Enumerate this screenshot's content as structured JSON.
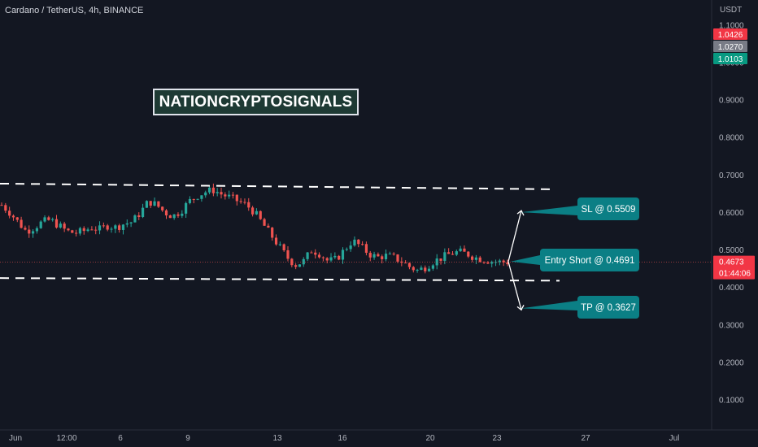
{
  "header": {
    "symbol": "Cardano / TetherUS, 4h, BINANCE"
  },
  "watermark": {
    "text": "NATIONCRYPTOSIGNALS"
  },
  "colors": {
    "background": "#131722",
    "up_candle": "#26a69a",
    "down_candle": "#ef5350",
    "callout": "#0b7f85",
    "dashed_line": "#ffffff"
  },
  "chart_data": {
    "type": "candlestick",
    "y_unit": "USDT",
    "ylim": [
      0.05,
      1.1
    ],
    "y_ticks": [
      "1.1000",
      "1.0000",
      "0.9000",
      "0.8000",
      "0.7000",
      "0.6000",
      "0.5000",
      "0.4000",
      "0.3000",
      "0.2000",
      "0.1000"
    ],
    "x_ticks": [
      "Jun",
      "12:00",
      "6",
      "9",
      "13",
      "16",
      "20",
      "23",
      "27",
      "Jul"
    ],
    "price_badges": [
      {
        "label": "1.0426",
        "value": 1.0426,
        "color": "#f23645"
      },
      {
        "label": "1.0270",
        "value": 1.027,
        "color": "#787b86"
      },
      {
        "label": "1.0103",
        "value": 1.0103,
        "color": "#089981"
      }
    ],
    "last_price": {
      "label": "0.4673",
      "countdown": "01:44:06",
      "value": 0.4673,
      "color": "#f23645"
    },
    "levels": {
      "resistance_line": {
        "start": 0.677,
        "end": 0.662
      },
      "support_line": {
        "start": 0.425,
        "end": 0.418
      },
      "current_guide": 0.4673
    },
    "callouts": [
      {
        "label": "SL @ 0.5509",
        "value": 0.5509
      },
      {
        "label": "Entry Short @ 0.4691",
        "value": 0.4691
      },
      {
        "label": "TP @ 0.3627",
        "value": 0.3627
      }
    ],
    "price_path": [
      0.62,
      0.6,
      0.575,
      0.55,
      0.56,
      0.575,
      0.58,
      0.565,
      0.55,
      0.545,
      0.55,
      0.56,
      0.555,
      0.565,
      0.56,
      0.57,
      0.575,
      0.6,
      0.63,
      0.62,
      0.6,
      0.59,
      0.605,
      0.63,
      0.645,
      0.655,
      0.66,
      0.648,
      0.64,
      0.63,
      0.62,
      0.6,
      0.57,
      0.54,
      0.51,
      0.48,
      0.46,
      0.47,
      0.5,
      0.49,
      0.47,
      0.475,
      0.5,
      0.525,
      0.51,
      0.49,
      0.48,
      0.485,
      0.48,
      0.47,
      0.455,
      0.445,
      0.455,
      0.47,
      0.48,
      0.49,
      0.495,
      0.49,
      0.48,
      0.475,
      0.47,
      0.468,
      0.4673
    ]
  }
}
